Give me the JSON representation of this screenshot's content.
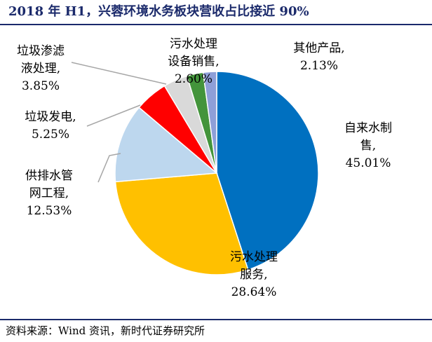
{
  "header": {
    "title": "2018 年 H1，兴蓉环境水务板块营收占比接近 90%"
  },
  "footer": {
    "source": "资料来源：Wind 资讯，新时代证券研究所"
  },
  "chart_data": {
    "type": "pie",
    "title": "2018 年 H1，兴蓉环境水务板块营收占比接近 90%",
    "slices": [
      {
        "name": "自来水制售",
        "value": 45.01,
        "color": "#0070c0",
        "label_lines": [
          "自来水制",
          "售,",
          "45.01%"
        ]
      },
      {
        "name": "污水处理服务",
        "value": 28.64,
        "color": "#ffc000",
        "label_lines": [
          "污水处理",
          "服务,",
          "28.64%"
        ]
      },
      {
        "name": "供排水管网工程",
        "value": 12.53,
        "color": "#bdd7ee",
        "label_lines": [
          "供排水管",
          "网工程,",
          "12.53%"
        ]
      },
      {
        "name": "垃圾发电",
        "value": 5.25,
        "color": "#ff0000",
        "label_lines": [
          "垃圾发电,",
          "5.25%"
        ]
      },
      {
        "name": "垃圾渗滤液处理",
        "value": 3.85,
        "color": "#d9d9d9",
        "label_lines": [
          "垃圾渗滤",
          "液处理,",
          "3.85%"
        ]
      },
      {
        "name": "污水处理设备销售",
        "value": 2.6,
        "color": "#43943b",
        "label_lines": [
          "污水处理",
          "设备销售,",
          "2.60%"
        ]
      },
      {
        "name": "其他产品",
        "value": 2.13,
        "color": "#8e9fd8",
        "label_lines": [
          "其他产品,",
          "2.13%"
        ]
      }
    ]
  }
}
